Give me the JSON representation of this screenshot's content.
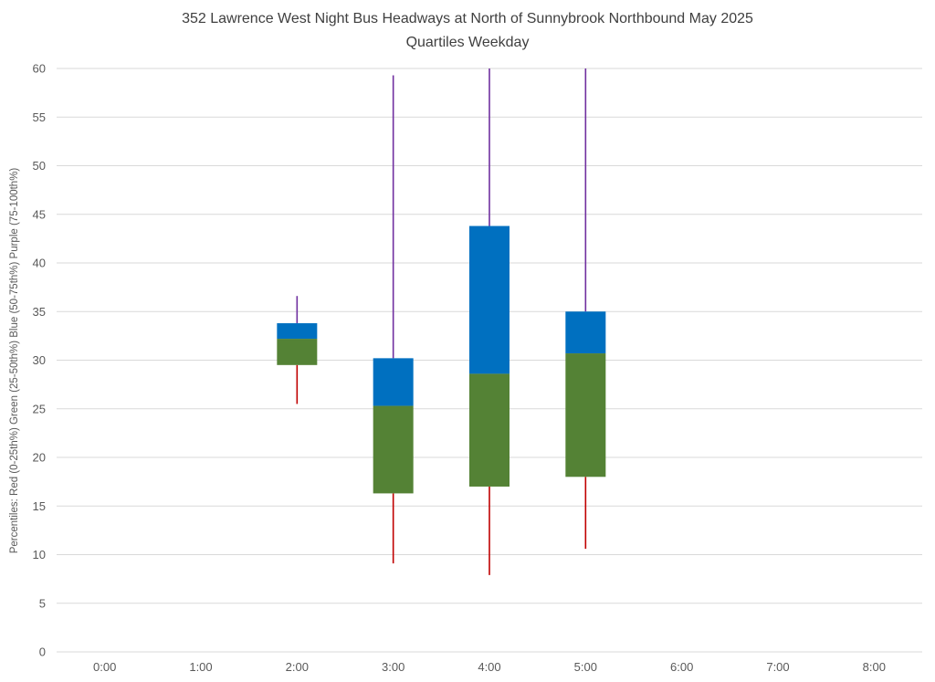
{
  "chart_data": {
    "type": "boxplot",
    "title": "352 Lawrence West Night Bus Headways at North of Sunnybrook Northbound May 2025",
    "subtitle": "Quartiles Weekday",
    "ylabel": "Percentiles:  Red (0-25th%)  Green (25-50th%)  Blue (50-75th%)  Purple (75-100th%)",
    "categories": [
      "0:00",
      "1:00",
      "2:00",
      "3:00",
      "4:00",
      "5:00",
      "6:00",
      "7:00",
      "8:00"
    ],
    "ylim": [
      0,
      60
    ],
    "ytick_step": 5,
    "yticks": [
      0,
      5,
      10,
      15,
      20,
      25,
      30,
      35,
      40,
      45,
      50,
      55,
      60
    ],
    "grid": true,
    "legend_position": "none",
    "colors": {
      "p0_25_red": "#c00000",
      "p25_50_green": "#548235",
      "p50_75_blue": "#0070c0",
      "p75_100_purple": "#7030a0",
      "gridline": "#d9d9d9",
      "axis_text": "#595959",
      "title_text": "#3f3f3f"
    },
    "series": [
      {
        "category": "2:00",
        "p0": 25.5,
        "p25": 29.5,
        "p50": 32.2,
        "p75": 33.8,
        "p100": 36.6
      },
      {
        "category": "3:00",
        "p0": 9.1,
        "p25": 16.3,
        "p50": 25.3,
        "p75": 30.2,
        "p100": 59.3
      },
      {
        "category": "4:00",
        "p0": 7.9,
        "p25": 17.0,
        "p50": 28.6,
        "p75": 43.8,
        "p100": 60.0
      },
      {
        "category": "5:00",
        "p0": 10.6,
        "p25": 18.0,
        "p50": 30.7,
        "p75": 35.0,
        "p100": 60.0
      }
    ]
  }
}
